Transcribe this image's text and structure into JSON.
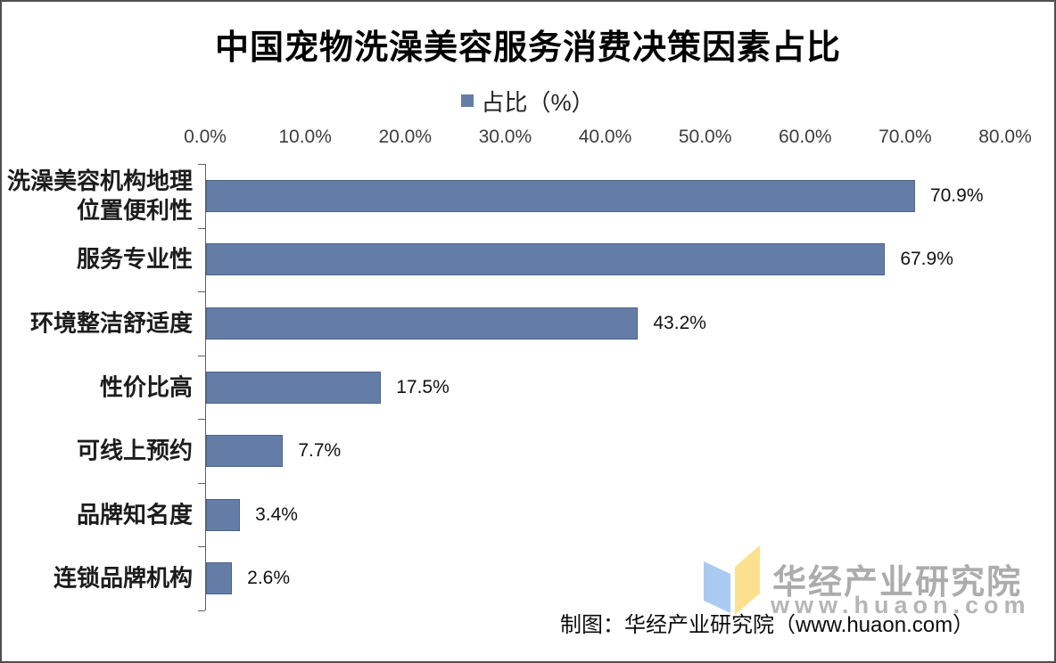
{
  "header": {
    "title": "中国宠物洗澡美容服务消费决策因素占比"
  },
  "legend": {
    "label": "占比（%）"
  },
  "chart_data": {
    "type": "bar",
    "orientation": "horizontal",
    "title": "中国宠物洗澡美容服务消费决策因素占比",
    "series_name": "占比（%）",
    "categories": [
      "洗澡美容机构地理位置便利性",
      "服务专业性",
      "环境整洁舒适度",
      "性价比高",
      "可线上预约",
      "品牌知名度",
      "连锁品牌机构"
    ],
    "values": [
      70.9,
      67.9,
      43.2,
      17.5,
      7.7,
      3.4,
      2.6
    ],
    "value_labels": [
      "70.9%",
      "67.9%",
      "43.2%",
      "17.5%",
      "7.7%",
      "3.4%",
      "2.6%"
    ],
    "x_tick_labels": [
      "0.0%",
      "10.0%",
      "20.0%",
      "30.0%",
      "40.0%",
      "50.0%",
      "60.0%",
      "70.0%",
      "80.0%"
    ],
    "xlim": [
      0,
      80
    ],
    "grid": false,
    "legend_position": "top-center",
    "bar_color": "#647da6",
    "axis_color": "#5f5f5f"
  },
  "watermark": {
    "org_name": "华经产业研究院",
    "website": "www.huaon.com",
    "text_color": "#acacac",
    "logo": {
      "blue": "#a9cbf2",
      "yellow": "#fbe08f"
    }
  },
  "footer": {
    "credit": "制图：华经产业研究院（www.huaon.com）"
  }
}
